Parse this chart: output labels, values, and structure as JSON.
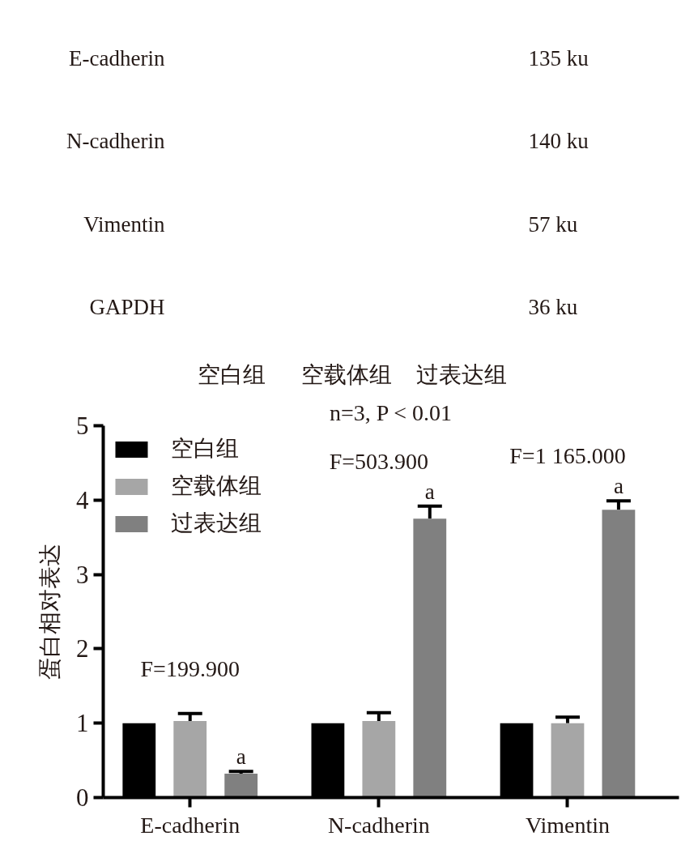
{
  "chart_data": [
    {
      "type": "other",
      "categories": [
        "空白组",
        "空载体组",
        "过表达组"
      ],
      "y_categories": [
        "E-cadherin",
        "N-cadherin",
        "Vimentin",
        "GAPDH"
      ],
      "y2_categories": [
        "135 ku",
        "140 ku",
        "57 ku",
        "36 ku"
      ]
    },
    {
      "type": "bar",
      "ylabel": "蛋白相对表达",
      "categories": [
        "E-cadherin",
        "N-cadherin",
        "Vimentin"
      ],
      "series": [
        {
          "name": "空白组",
          "color": "#000000",
          "values": [
            1,
            1,
            1
          ]
        },
        {
          "name": "空载体组",
          "color": "#a6a6a6",
          "values": [
            1.03,
            1.03,
            1.0
          ],
          "errors": [
            [
              1.03,
              1.13
            ],
            [
              1.03,
              1.14
            ],
            [
              1.0,
              1.08
            ]
          ]
        },
        {
          "name": "过表达组",
          "color": "#808080",
          "values": [
            0.32,
            3.75,
            3.87
          ],
          "errors": [
            [
              0.32,
              0.35
            ],
            [
              3.75,
              3.92
            ],
            [
              3.87,
              3.99
            ]
          ],
          "value_labels": [
            "a",
            "a",
            "a"
          ]
        }
      ],
      "ylim": [
        0,
        5
      ],
      "yticks": [
        0,
        1,
        2,
        3,
        4,
        5
      ],
      "legend": "top left",
      "annotations": [
        "n=3, P < 0.01",
        "F=199.900",
        "F=503.900",
        "F=1 165.000"
      ]
    }
  ]
}
